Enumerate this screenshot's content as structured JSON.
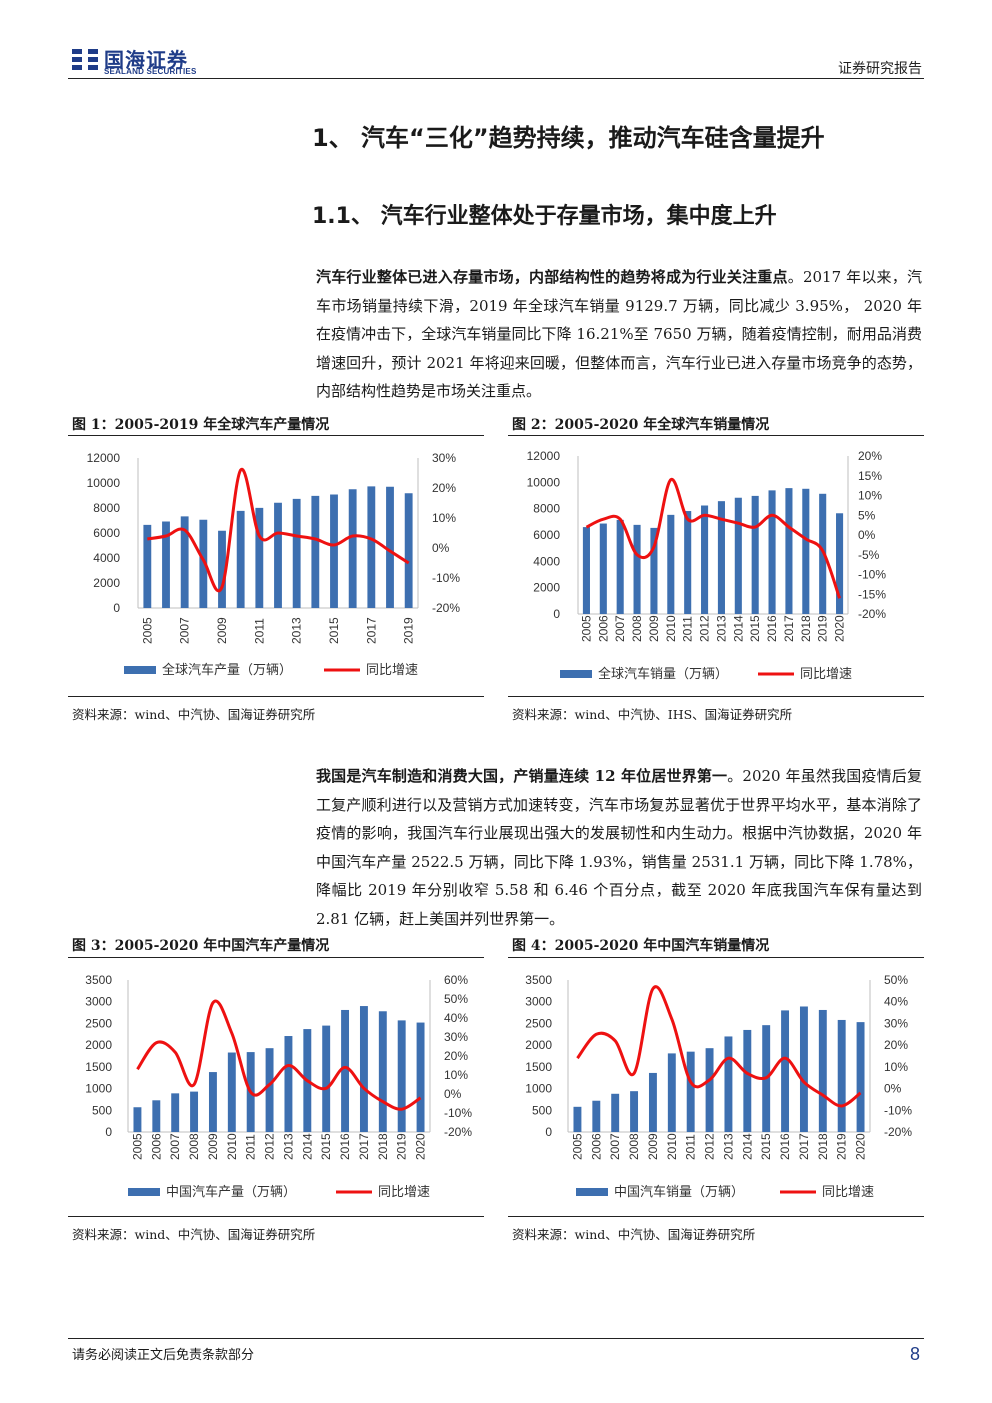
{
  "header": {
    "logo_cn": "国海证券",
    "logo_en": "SEALAND SECURITIES",
    "report_type": "证券研究报告"
  },
  "section": {
    "title": "1、 汽车“三化”趋势持续，推动汽车硅含量提升",
    "subtitle": "1.1、 汽车行业整体处于存量市场，集中度上升"
  },
  "paragraphs": {
    "p1_bold": "汽车行业整体已进入存量市场，内部结构性的趋势将成为行业关注重点",
    "p1_rest": "。2017 年以来，汽车市场销量持续下滑，2019 年全球汽车销量 9129.7 万辆，同比减少 3.95%， 2020 年在疫情冲击下，全球汽车销量同比下降 16.21%至 7650 万辆，随着疫情控制，耐用品消费增速回升，预计 2021 年将迎来回暖，但整体而言，汽车行业已进入存量市场竞争的态势，内部结构性趋势是市场关注重点。",
    "p2_bold": "我国是汽车制造和消费大国，产销量连续 12 年位居世界第一",
    "p2_rest": "。2020 年虽然我国疫情后复工复产顺利进行以及营销方式加速转变，汽车市场复苏显著优于世界平均水平，基本消除了疫情的影响，我国汽车行业展现出强大的发展韧性和内生动力。根据中汽协数据，2020 年中国汽车产量 2522.5 万辆，同比下降 1.93%，销售量 2531.1 万辆，同比下降 1.78%，降幅比 2019 年分别收窄 5.58 和 6.46 个百分点，截至 2020 年底我国汽车保有量达到 2.81 亿辆，赶上美国并列世界第一。"
  },
  "figures": {
    "fig1_title": "图 1：2005-2019 年全球汽车产量情况",
    "fig2_title": "图 2：2005-2020 年全球汽车销量情况",
    "fig3_title": "图 3：2005-2020 年中国汽车产量情况",
    "fig4_title": "图 4：2005-2020 年中国汽车销量情况",
    "fig1_source": "资料来源：wind、中汽协、国海证券研究所",
    "fig2_source": "资料来源：wind、中汽协、IHS、国海证券研究所",
    "fig3_source": "资料来源：wind、中汽协、国海证券研究所",
    "fig4_source": "资料来源：wind、中汽协、国海证券研究所"
  },
  "footer": {
    "disclaimer": "请务必阅读正文后免责条款部分",
    "page_number": "8"
  },
  "colors": {
    "bar": "#3d6fb0",
    "line": "#ee1111",
    "brand": "#1f3c88"
  },
  "chart_data": [
    {
      "type": "bar",
      "categories": [
        "2005",
        "2006",
        "2007",
        "2008",
        "2009",
        "2010",
        "2011",
        "2012",
        "2013",
        "2014",
        "2015",
        "2016",
        "2017",
        "2018",
        "2019"
      ],
      "x_tick_labels": [
        "2005",
        "2007",
        "2009",
        "2011",
        "2013",
        "2015",
        "2017",
        "2019"
      ],
      "series": [
        {
          "name": "全球汽车产量（万辆）",
          "type": "bar",
          "axis": "left",
          "values": [
            6650,
            6920,
            7330,
            7060,
            6180,
            7770,
            8010,
            8420,
            8730,
            8970,
            9080,
            9500,
            9730,
            9700,
            9180
          ]
        },
        {
          "name": "同比增速",
          "type": "line",
          "axis": "right",
          "values": [
            3,
            4,
            6,
            -4,
            -13,
            26,
            4,
            5,
            4,
            3,
            1,
            4,
            3,
            -1,
            -5
          ]
        }
      ],
      "ylim": [
        0,
        12000
      ],
      "yticks": [
        "12000",
        "10000",
        "8000",
        "6000",
        "4000",
        "2000",
        "0"
      ],
      "y2lim": [
        -20,
        30
      ],
      "y2ticks": [
        "30%",
        "20%",
        "10%",
        "0%",
        "-10%",
        "-20%"
      ],
      "legend": "bottom",
      "grid": false
    },
    {
      "type": "bar",
      "categories": [
        "2005",
        "2006",
        "2007",
        "2008",
        "2009",
        "2010",
        "2011",
        "2012",
        "2013",
        "2014",
        "2015",
        "2016",
        "2017",
        "2018",
        "2019",
        "2020"
      ],
      "series": [
        {
          "name": "全球汽车销量（万辆）",
          "type": "bar",
          "axis": "left",
          "values": [
            6600,
            6870,
            7150,
            6770,
            6540,
            7530,
            7820,
            8240,
            8570,
            8830,
            8970,
            9390,
            9560,
            9510,
            9130,
            7650
          ]
        },
        {
          "name": "同比增速",
          "type": "line",
          "axis": "right",
          "values": [
            2,
            4,
            4,
            -5,
            -3,
            14,
            4,
            5,
            4,
            3,
            2,
            5,
            2,
            -1,
            -4,
            -16
          ]
        }
      ],
      "ylim": [
        0,
        12000
      ],
      "yticks": [
        "12000",
        "10000",
        "8000",
        "6000",
        "4000",
        "2000",
        "0"
      ],
      "y2lim": [
        -20,
        20
      ],
      "y2ticks": [
        "20%",
        "15%",
        "10%",
        "5%",
        "0%",
        "-5%",
        "-10%",
        "-15%",
        "-20%"
      ],
      "legend": "bottom",
      "grid": false
    },
    {
      "type": "bar",
      "categories": [
        "2005",
        "2006",
        "2007",
        "2008",
        "2009",
        "2010",
        "2011",
        "2012",
        "2013",
        "2014",
        "2015",
        "2016",
        "2017",
        "2018",
        "2019",
        "2020"
      ],
      "series": [
        {
          "name": "中国汽车产量（万辆）",
          "type": "bar",
          "axis": "left",
          "values": [
            570,
            730,
            890,
            930,
            1380,
            1830,
            1840,
            1930,
            2210,
            2370,
            2450,
            2810,
            2900,
            2780,
            2570,
            2520
          ]
        },
        {
          "name": "同比增速",
          "type": "line",
          "axis": "right",
          "values": [
            13,
            27,
            22,
            5,
            48,
            32,
            1,
            5,
            15,
            7,
            3,
            14,
            3,
            -4,
            -8,
            -2
          ]
        }
      ],
      "ylim": [
        0,
        3500
      ],
      "yticks": [
        "3500",
        "3000",
        "2500",
        "2000",
        "1500",
        "1000",
        "500",
        "0"
      ],
      "y2lim": [
        -20,
        60
      ],
      "y2ticks": [
        "60%",
        "50%",
        "40%",
        "30%",
        "20%",
        "10%",
        "0%",
        "-10%",
        "-20%"
      ],
      "legend": "bottom",
      "grid": false
    },
    {
      "type": "bar",
      "categories": [
        "2005",
        "2006",
        "2007",
        "2008",
        "2009",
        "2010",
        "2011",
        "2012",
        "2013",
        "2014",
        "2015",
        "2016",
        "2017",
        "2018",
        "2019",
        "2020"
      ],
      "series": [
        {
          "name": "中国汽车销量（万辆）",
          "type": "bar",
          "axis": "left",
          "values": [
            580,
            720,
            880,
            940,
            1360,
            1810,
            1850,
            1930,
            2200,
            2350,
            2460,
            2800,
            2890,
            2810,
            2580,
            2530
          ]
        },
        {
          "name": "同比增速",
          "type": "line",
          "axis": "right",
          "values": [
            14,
            25,
            22,
            7,
            46,
            32,
            3,
            4,
            14,
            7,
            5,
            14,
            3,
            -3,
            -8,
            -2
          ]
        }
      ],
      "ylim": [
        0,
        3500
      ],
      "yticks": [
        "3500",
        "3000",
        "2500",
        "2000",
        "1500",
        "1000",
        "500",
        "0"
      ],
      "y2lim": [
        -20,
        50
      ],
      "y2ticks": [
        "50%",
        "40%",
        "30%",
        "20%",
        "10%",
        "0%",
        "-10%",
        "-20%"
      ],
      "legend": "bottom",
      "grid": false
    }
  ]
}
